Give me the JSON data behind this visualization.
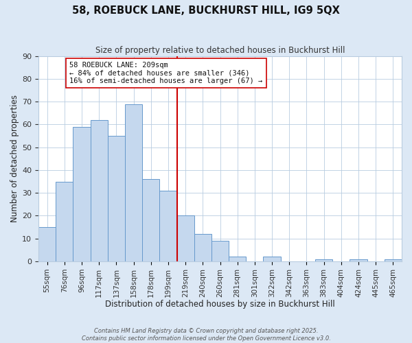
{
  "title1": "58, ROEBUCK LANE, BUCKHURST HILL, IG9 5QX",
  "title2": "Size of property relative to detached houses in Buckhurst Hill",
  "xlabel": "Distribution of detached houses by size in Buckhurst Hill",
  "ylabel": "Number of detached properties",
  "bin_labels": [
    "55sqm",
    "76sqm",
    "96sqm",
    "117sqm",
    "137sqm",
    "158sqm",
    "178sqm",
    "199sqm",
    "219sqm",
    "240sqm",
    "260sqm",
    "281sqm",
    "301sqm",
    "322sqm",
    "342sqm",
    "363sqm",
    "383sqm",
    "404sqm",
    "424sqm",
    "445sqm",
    "465sqm"
  ],
  "bar_heights": [
    15,
    35,
    59,
    62,
    55,
    69,
    36,
    31,
    20,
    12,
    9,
    2,
    0,
    2,
    0,
    0,
    1,
    0,
    1,
    0,
    1
  ],
  "bar_color": "#c5d8ee",
  "bar_edge_color": "#6699cc",
  "vline_color": "#cc0000",
  "ylim": [
    0,
    90
  ],
  "yticks": [
    0,
    10,
    20,
    30,
    40,
    50,
    60,
    70,
    80,
    90
  ],
  "annotation_title": "58 ROEBUCK LANE: 209sqm",
  "annotation_line1": "← 84% of detached houses are smaller (346)",
  "annotation_line2": "16% of semi-detached houses are larger (67) →",
  "footnote1": "Contains HM Land Registry data © Crown copyright and database right 2025.",
  "footnote2": "Contains public sector information licensed under the Open Government Licence v3.0.",
  "bg_color": "#dce8f5",
  "plot_bg_color": "#ffffff",
  "grid_color": "#b8cce0"
}
